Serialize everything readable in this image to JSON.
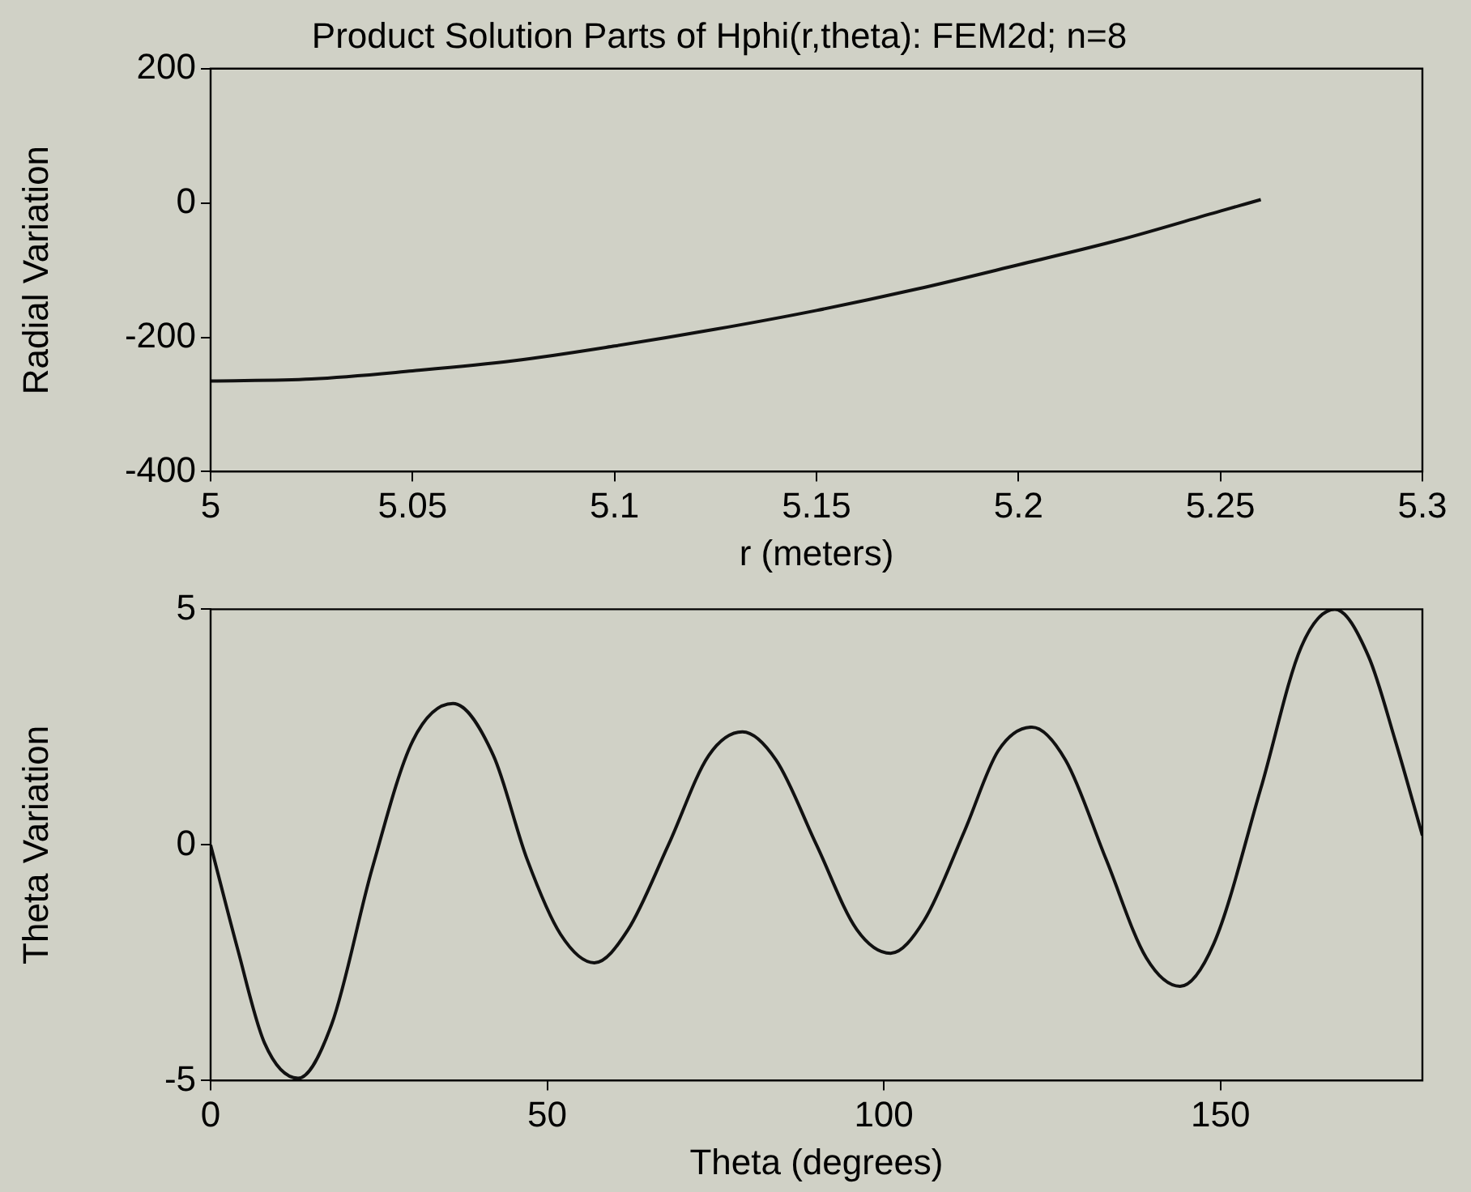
{
  "chart_data": [
    {
      "type": "line",
      "title": "Product Solution Parts of Hphi(r,theta): FEM2d; n=8",
      "xlabel": "r (meters)",
      "ylabel": "Radial Variation",
      "xlim": [
        5,
        5.3
      ],
      "xticks": [
        5,
        5.05,
        5.1,
        5.15,
        5.2,
        5.25,
        5.3
      ],
      "ylim": [
        -400,
        200
      ],
      "yticks": [
        -400,
        -200,
        0,
        200
      ],
      "grid": false,
      "legend": false,
      "marker": "none",
      "line_style": "solid",
      "series": [
        {
          "color": "#111111",
          "x": [
            5,
            5.025,
            5.05,
            5.075,
            5.1,
            5.125,
            5.15,
            5.175,
            5.2,
            5.225,
            5.25,
            5.26
          ],
          "values": [
            -265,
            -262,
            -250,
            -235,
            -213,
            -188,
            -160,
            -128,
            -92,
            -55,
            -12,
            5
          ]
        }
      ]
    },
    {
      "type": "line",
      "xlabel": "Theta (degrees)",
      "ylabel": "Theta Variation",
      "xlim": [
        0,
        180
      ],
      "xticks": [
        0,
        50,
        100,
        150
      ],
      "ylim": [
        -5,
        5
      ],
      "yticks": [
        -5,
        0,
        5
      ],
      "grid": false,
      "legend": false,
      "marker": "none",
      "line_style": "solid",
      "series": [
        {
          "color": "#111111",
          "x": [
            0,
            4,
            8,
            13,
            18,
            24,
            30,
            36,
            42,
            47,
            52,
            57,
            62,
            68,
            74,
            79,
            84,
            90,
            96,
            101,
            106,
            112,
            117,
            122,
            127,
            133,
            139,
            144,
            149,
            156,
            162,
            167,
            172,
            176,
            180
          ],
          "values": [
            0,
            -2.2,
            -4.2,
            -4.95,
            -3.8,
            -0.5,
            2.2,
            3.0,
            1.9,
            -0.3,
            -1.9,
            -2.5,
            -1.8,
            0,
            1.9,
            2.4,
            1.8,
            0,
            -1.8,
            -2.3,
            -1.6,
            0.3,
            2.0,
            2.5,
            1.8,
            -0.3,
            -2.4,
            -3.0,
            -2.1,
            1.2,
            4.2,
            5.0,
            4.0,
            2.2,
            0.2
          ]
        }
      ]
    }
  ]
}
